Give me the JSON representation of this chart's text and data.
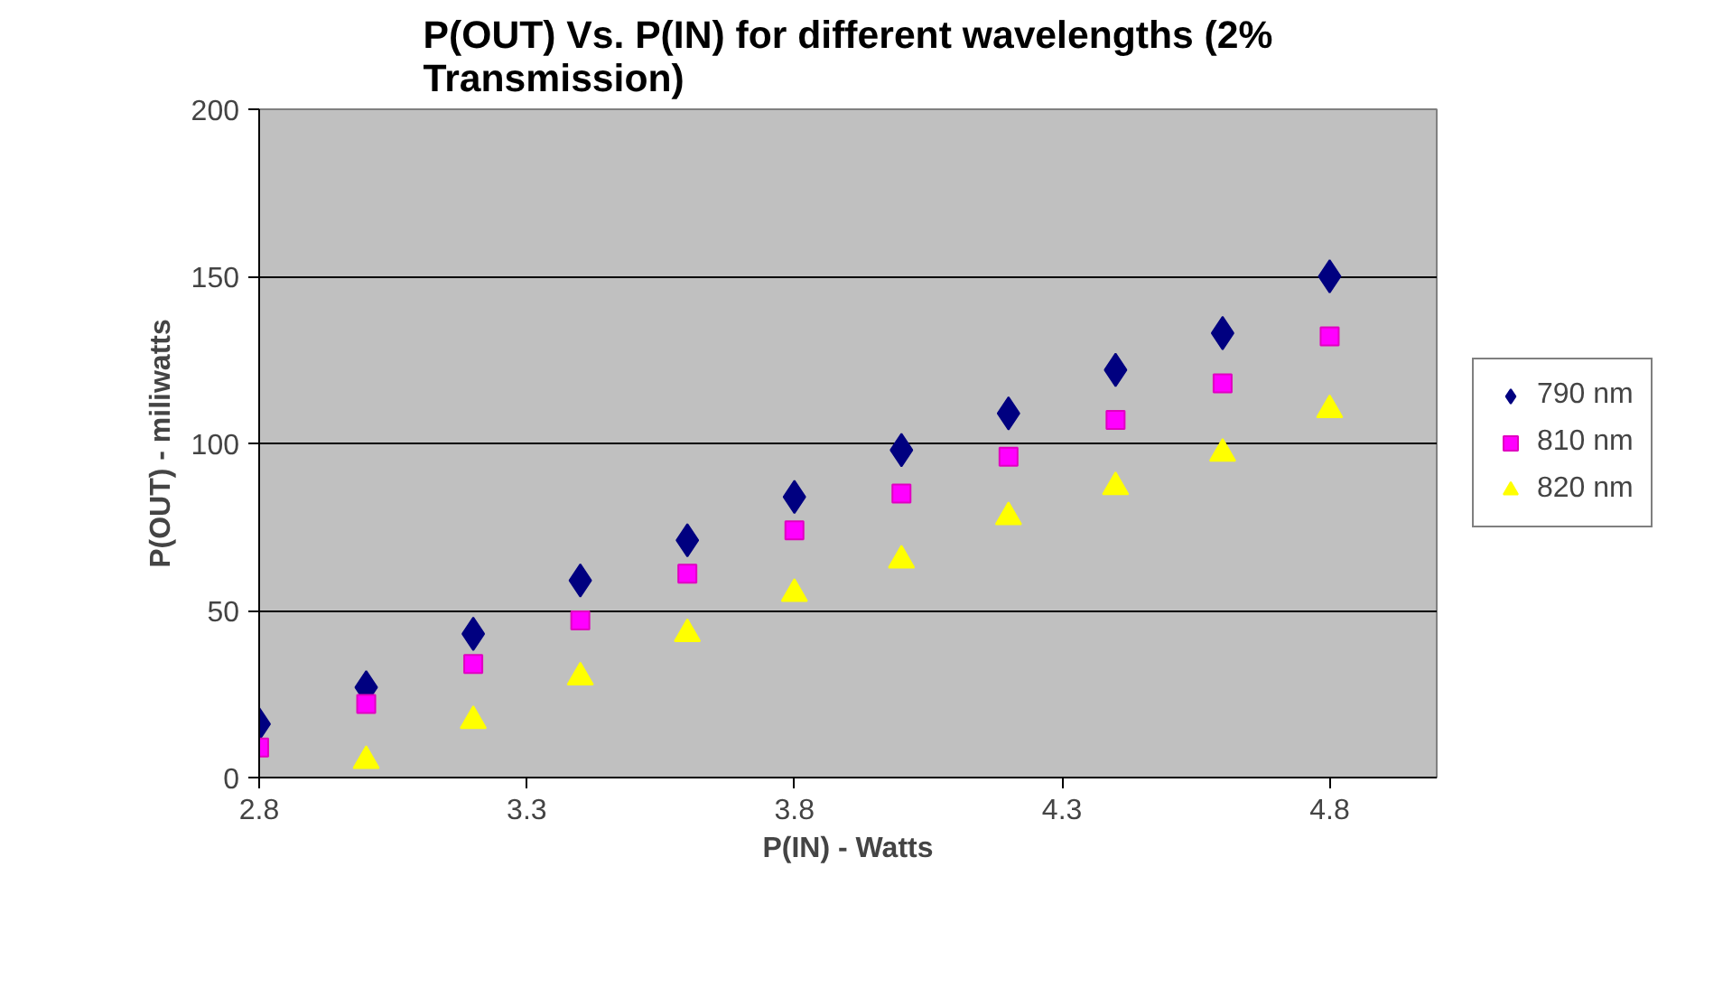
{
  "chart_data": {
    "type": "scatter",
    "title": "P(OUT) Vs. P(IN) for different wavelengths (2%\nTransmission)",
    "xlabel": "P(IN) - Watts",
    "ylabel": "P(OUT) - miliwatts",
    "x": [
      2.8,
      3.0,
      3.2,
      3.4,
      3.6,
      3.8,
      4.0,
      4.2,
      4.4,
      4.6,
      4.8
    ],
    "series": [
      {
        "name": "790 nm",
        "color": "#000080",
        "marker": "diamond",
        "values": [
          16,
          27,
          43,
          59,
          71,
          84,
          98,
          109,
          122,
          133,
          150
        ]
      },
      {
        "name": "810 nm",
        "color": "#ff00ff",
        "marker": "square",
        "values": [
          9,
          22,
          34,
          47,
          61,
          74,
          85,
          96,
          107,
          118,
          132
        ]
      },
      {
        "name": "820 nm",
        "color": "#ffff00",
        "marker": "triangle",
        "values": [
          null,
          5,
          17,
          30,
          43,
          55,
          65,
          78,
          87,
          97,
          110
        ]
      }
    ],
    "xlim": [
      2.8,
      5.0
    ],
    "xticks": [
      2.8,
      3.3,
      3.8,
      4.3,
      4.8
    ],
    "ylim": [
      0,
      200
    ],
    "yticks": [
      0,
      50,
      100,
      150,
      200
    ],
    "grid": "y",
    "legend": "right"
  }
}
